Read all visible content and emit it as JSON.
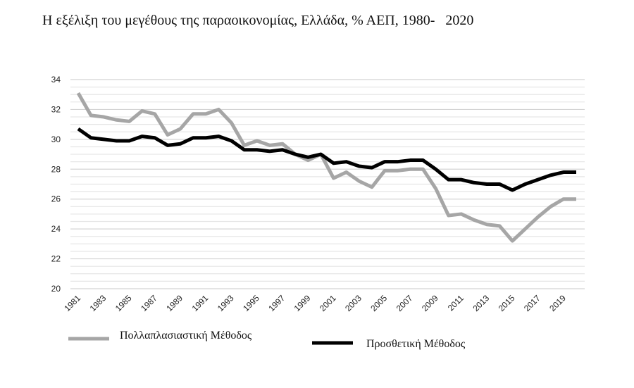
{
  "chart_data": {
    "type": "line",
    "title": "Η εξέλιξη του μεγέθους της παραοικονομίας, Ελλάδα, % ΑΕΠ, 1980-   2020",
    "xlabel": "",
    "ylabel": "",
    "ylim": [
      20,
      34
    ],
    "yticks": [
      "20",
      "22",
      "24",
      "26",
      "28",
      "30",
      "32",
      "34"
    ],
    "x": [
      1981,
      1982,
      1983,
      1984,
      1985,
      1986,
      1987,
      1988,
      1989,
      1990,
      1991,
      1992,
      1993,
      1994,
      1995,
      1996,
      1997,
      1998,
      1999,
      2000,
      2001,
      2002,
      2003,
      2004,
      2005,
      2006,
      2007,
      2008,
      2009,
      2010,
      2011,
      2012,
      2013,
      2014,
      2015,
      2016,
      2017,
      2018,
      2019,
      2020
    ],
    "xticks": [
      "1981",
      "1983",
      "1985",
      "1987",
      "1989",
      "1991",
      "1993",
      "1995",
      "1997",
      "1999",
      "2001",
      "2003",
      "2005",
      "2007",
      "2009",
      "2011",
      "2013",
      "2015",
      "2017",
      "2019"
    ],
    "grid": true,
    "legend_position": "bottom",
    "series": [
      {
        "name": "Πολλαπλασιαστική Μέθοδος",
        "color": "#a6a6a6",
        "values": [
          33.1,
          31.6,
          31.5,
          31.3,
          31.2,
          31.9,
          31.7,
          30.3,
          30.7,
          31.7,
          31.7,
          32.0,
          31.1,
          29.6,
          29.9,
          29.6,
          29.7,
          29.0,
          28.6,
          29.0,
          27.4,
          27.8,
          27.2,
          26.8,
          27.9,
          27.9,
          28.0,
          28.0,
          26.7,
          24.9,
          25.0,
          24.6,
          24.3,
          24.2,
          23.2,
          24.0,
          24.8,
          25.5,
          26.0,
          26.0
        ]
      },
      {
        "name": "Προσθετική Μέθοδος",
        "color": "#000000",
        "values": [
          30.7,
          30.1,
          30.0,
          29.9,
          29.9,
          30.2,
          30.1,
          29.6,
          29.7,
          30.1,
          30.1,
          30.2,
          29.9,
          29.3,
          29.3,
          29.2,
          29.3,
          29.0,
          28.8,
          29.0,
          28.4,
          28.5,
          28.2,
          28.1,
          28.5,
          28.5,
          28.6,
          28.6,
          28.0,
          27.3,
          27.3,
          27.1,
          27.0,
          27.0,
          26.6,
          27.0,
          27.3,
          27.6,
          27.8,
          27.8
        ]
      }
    ]
  }
}
